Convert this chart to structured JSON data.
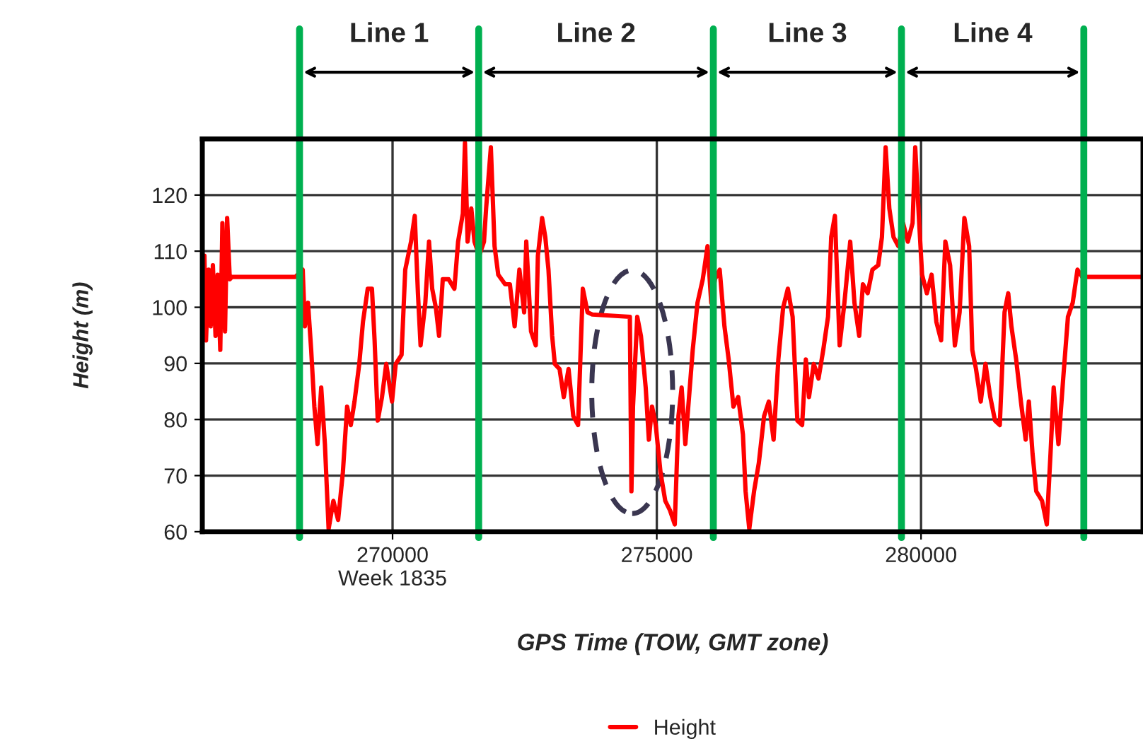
{
  "chart_data": {
    "type": "line",
    "xlabel": "GPS Time (TOW, GMT zone)",
    "ylabel": "Height (m)",
    "annotations": [
      "Line 1",
      "Line 2",
      "Line 3",
      "Line 4"
    ],
    "xlim": [
      266400,
      284200
    ],
    "ylim": [
      60,
      130
    ],
    "xticks": [
      {
        "value": 270000,
        "label": "270000\nWeek 1835"
      },
      275000,
      280000
    ],
    "yticks": [
      60,
      70,
      80,
      90,
      100,
      110,
      120
    ],
    "grid": true,
    "legend": "bottom",
    "marker": "none",
    "line_style": "solid",
    "ref_lines": [
      {
        "axis": "x",
        "value": 268240,
        "color": "#00b050"
      },
      {
        "axis": "x",
        "value": 271630,
        "color": "#00b050"
      },
      {
        "axis": "x",
        "value": 276070,
        "color": "#00b050"
      },
      {
        "axis": "x",
        "value": 279630,
        "color": "#00b050"
      },
      {
        "axis": "x",
        "value": 283080,
        "color": "#00b050"
      }
    ],
    "series": [
      {
        "name": "Height",
        "color": "#ff0000",
        "x": [
          266440,
          266470,
          266520,
          266560,
          266600,
          266650,
          266690,
          266740,
          266780,
          266830,
          266870,
          266920,
          266960,
          268160,
          268300,
          268340,
          268400,
          268460,
          268520,
          268580,
          268650,
          268720,
          268790,
          268880,
          268970,
          269060,
          269140,
          269210,
          269280,
          269370,
          269440,
          269530,
          269610,
          269660,
          269720,
          269800,
          269880,
          269990,
          270060,
          270170,
          270240,
          270350,
          270420,
          270480,
          270530,
          270620,
          270690,
          270750,
          270820,
          270880,
          270950,
          271060,
          271170,
          271240,
          271330,
          271370,
          271420,
          271490,
          271550,
          271640,
          271730,
          271770,
          271860,
          271930,
          272000,
          272130,
          272220,
          272310,
          272400,
          272490,
          272530,
          272620,
          272710,
          272750,
          272830,
          272890,
          272950,
          273020,
          273070,
          273160,
          273240,
          273330,
          273420,
          273510,
          273600,
          273690,
          273780,
          274490,
          274520,
          274550,
          274630,
          274700,
          274790,
          274850,
          274910,
          274980,
          275070,
          275160,
          275250,
          275340,
          275410,
          275470,
          275540,
          275610,
          275680,
          275770,
          275870,
          275960,
          276030,
          276100,
          276190,
          276280,
          276360,
          276450,
          276540,
          276630,
          276680,
          276750,
          276840,
          276930,
          277030,
          277120,
          277210,
          277300,
          277390,
          277480,
          277570,
          277660,
          277750,
          277820,
          277880,
          277970,
          278060,
          278150,
          278240,
          278300,
          278370,
          278460,
          278550,
          278660,
          278740,
          278830,
          278900,
          278990,
          279080,
          279190,
          279260,
          279330,
          279400,
          279480,
          279570,
          279660,
          279750,
          279840,
          279890,
          279960,
          280020,
          280110,
          280200,
          280290,
          280380,
          280460,
          280550,
          280640,
          280730,
          280820,
          280910,
          280970,
          281040,
          281130,
          281220,
          281310,
          281400,
          281490,
          281580,
          281650,
          281710,
          281800,
          281890,
          281980,
          282040,
          282110,
          282180,
          282290,
          282380,
          282450,
          282510,
          282600,
          282690,
          282780,
          282870,
          282960,
          283050,
          284190
        ],
        "values": [
          109.2,
          94.1,
          106.7,
          96.6,
          107.5,
          94.9,
          105.8,
          92.4,
          115.0,
          95.7,
          115.9,
          105.0,
          105.4,
          105.4,
          106.7,
          96.6,
          100.8,
          92.4,
          82.3,
          75.6,
          85.7,
          75.6,
          60.5,
          65.5,
          62.1,
          70.6,
          82.3,
          79.0,
          83.2,
          89.9,
          97.4,
          103.3,
          103.3,
          94.1,
          79.8,
          84.0,
          89.9,
          83.2,
          89.9,
          91.5,
          106.7,
          111.7,
          116.3,
          102.5,
          93.2,
          100.8,
          111.7,
          103.3,
          99.9,
          94.9,
          105.0,
          105.0,
          103.3,
          111.7,
          116.7,
          129.3,
          111.7,
          117.6,
          111.7,
          109.2,
          111.7,
          117.6,
          128.5,
          110.9,
          105.8,
          104.1,
          104.1,
          96.6,
          106.7,
          99.1,
          111.7,
          95.7,
          93.2,
          109.2,
          115.9,
          112.5,
          106.7,
          94.9,
          89.9,
          89.0,
          84.0,
          89.0,
          80.6,
          79.0,
          103.3,
          99.1,
          98.7,
          98.3,
          67.2,
          82.3,
          98.3,
          94.9,
          85.7,
          76.4,
          82.3,
          79.0,
          70.6,
          65.5,
          63.8,
          61.3,
          80.6,
          85.7,
          75.6,
          84.0,
          92.4,
          100.8,
          105.0,
          110.9,
          100.8,
          105.0,
          106.7,
          96.6,
          90.7,
          82.3,
          84.0,
          77.3,
          67.2,
          60.5,
          67.2,
          72.2,
          80.6,
          83.2,
          76.4,
          90.7,
          99.9,
          103.3,
          98.3,
          79.8,
          79.0,
          90.7,
          84.0,
          89.9,
          87.3,
          92.4,
          98.3,
          112.5,
          116.3,
          93.2,
          100.8,
          111.7,
          100.8,
          94.9,
          104.1,
          102.5,
          106.7,
          107.5,
          112.5,
          128.5,
          117.6,
          112.5,
          110.9,
          115.0,
          111.7,
          115.0,
          128.5,
          115.9,
          105.8,
          102.5,
          105.8,
          97.4,
          94.1,
          111.7,
          107.5,
          93.2,
          99.1,
          115.9,
          110.9,
          92.4,
          89.0,
          83.2,
          89.9,
          84.0,
          79.8,
          79.0,
          99.1,
          102.5,
          96.6,
          90.7,
          83.2,
          76.4,
          83.2,
          73.9,
          67.2,
          65.5,
          61.3,
          73.9,
          85.7,
          75.6,
          87.3,
          98.3,
          100.8,
          106.7,
          105.4,
          105.4
        ]
      }
    ]
  }
}
